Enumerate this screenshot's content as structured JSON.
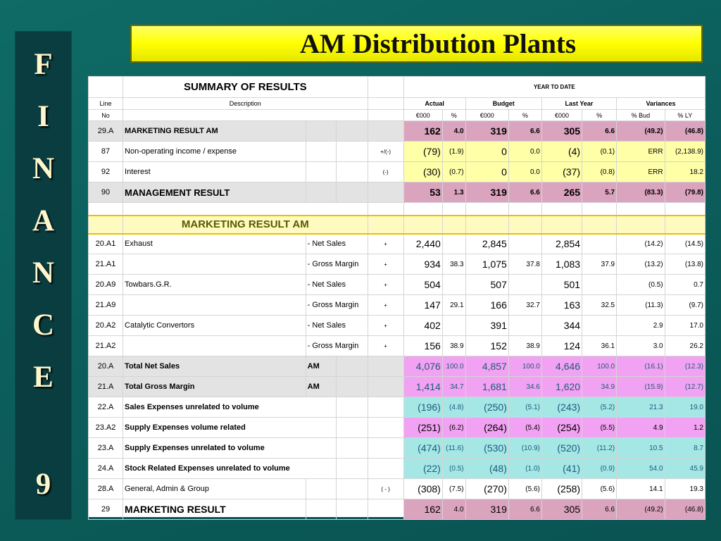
{
  "side_letters": [
    "F",
    "I",
    "N",
    "A",
    "N",
    "C",
    "E",
    "9"
  ],
  "title": "AM Distribution Plants",
  "table": {
    "summary_title": "SUMMARY   OF   RESULTS",
    "year_to_date": "YEAR TO DATE",
    "line_label": "Line",
    "no_label": "No",
    "description_label": "Description",
    "groups": [
      "Actual",
      "Budget",
      "Last Year",
      "Variances"
    ],
    "subheaders": [
      "€000",
      "%",
      "€000",
      "%",
      "€000",
      "%",
      "% Bud",
      "% LY"
    ],
    "summary_rows": [
      {
        "line": "29.A",
        "desc": "MARKETING RESULT AM",
        "sign": "",
        "a": "162",
        "ap": "4.0",
        "b": "319",
        "bp": "6.6",
        "ly": "305",
        "lyp": "6.6",
        "vb": "(49.2)",
        "vly": "(46.8)"
      },
      {
        "line": "87",
        "desc": "Non-operating income / expense",
        "sign": "+/(-)",
        "a": "(79)",
        "ap": "(1.9)",
        "b": "0",
        "bp": "0.0",
        "ly": "(4)",
        "lyp": "(0.1)",
        "vb": "ERR",
        "vly": "(2,138.9)"
      },
      {
        "line": "92",
        "desc": "Interest",
        "sign": "(-)",
        "a": "(30)",
        "ap": "(0.7)",
        "b": "0",
        "bp": "0.0",
        "ly": "(37)",
        "lyp": "(0.8)",
        "vb": "ERR",
        "vly": "18.2"
      },
      {
        "line": "90",
        "desc": "MANAGEMENT RESULT",
        "sign": "",
        "a": "53",
        "ap": "1.3",
        "b": "319",
        "bp": "6.6",
        "ly": "265",
        "lyp": "5.7",
        "vb": "(83.3)",
        "vly": "(79.8)"
      }
    ],
    "marketing_banner": "MARKETING   RESULT   AM",
    "detail_rows": [
      {
        "line": "20.A1",
        "desc": "Exhaust",
        "sub": "- Net Sales",
        "sign": "+",
        "a": "2,440",
        "ap": "",
        "b": "2,845",
        "bp": "",
        "ly": "2,854",
        "lyp": "",
        "vb": "(14.2)",
        "vly": "(14.5)"
      },
      {
        "line": "21.A1",
        "desc": "",
        "sub": "- Gross Margin",
        "sign": "+",
        "a": "934",
        "ap": "38.3",
        "b": "1,075",
        "bp": "37.8",
        "ly": "1,083",
        "lyp": "37.9",
        "vb": "(13.2)",
        "vly": "(13.8)"
      },
      {
        "line": "20.A9",
        "desc": "Towbars.G.R.",
        "sub": "- Net Sales",
        "sign": "+",
        "a": "504",
        "ap": "",
        "b": "507",
        "bp": "",
        "ly": "501",
        "lyp": "",
        "vb": "(0.5)",
        "vly": "0.7"
      },
      {
        "line": "21.A9",
        "desc": "",
        "sub": "- Gross Margin",
        "sign": "+",
        "a": "147",
        "ap": "29.1",
        "b": "166",
        "bp": "32.7",
        "ly": "163",
        "lyp": "32.5",
        "vb": "(11.3)",
        "vly": "(9.7)"
      },
      {
        "line": "20.A2",
        "desc": "Catalytic Convertors",
        "sub": "- Net Sales",
        "sign": "+",
        "a": "402",
        "ap": "",
        "b": "391",
        "bp": "",
        "ly": "344",
        "lyp": "",
        "vb": "2.9",
        "vly": "17.0"
      },
      {
        "line": "21.A2",
        "desc": "",
        "sub": "- Gross Margin",
        "sign": "+",
        "a": "156",
        "ap": "38.9",
        "b": "152",
        "bp": "38.9",
        "ly": "124",
        "lyp": "36.1",
        "vb": "3.0",
        "vly": "26.2"
      },
      {
        "line": "20.A",
        "desc": "Total Net Sales",
        "sub": "AM",
        "sign": "",
        "a": "4,076",
        "ap": "100.0",
        "b": "4,857",
        "bp": "100.0",
        "ly": "4,646",
        "lyp": "100.0",
        "vb": "(16.1)",
        "vly": "(12.3)"
      },
      {
        "line": "21.A",
        "desc": "Total Gross Margin",
        "sub": "AM",
        "sign": "",
        "a": "1,414",
        "ap": "34.7",
        "b": "1,681",
        "bp": "34.6",
        "ly": "1,620",
        "lyp": "34.9",
        "vb": "(15.9)",
        "vly": "(12.7)"
      },
      {
        "line": "22.A",
        "desc": "Sales Expenses unrelated to volume",
        "sub": "",
        "sign": "",
        "a": "(196)",
        "ap": "(4.8)",
        "b": "(250)",
        "bp": "(5.1)",
        "ly": "(243)",
        "lyp": "(5.2)",
        "vb": "21.3",
        "vly": "19.0"
      },
      {
        "line": "23.A2",
        "desc": "Supply Expenses volume related",
        "sub": "",
        "sign": "",
        "a": "(251)",
        "ap": "(6.2)",
        "b": "(264)",
        "bp": "(5.4)",
        "ly": "(254)",
        "lyp": "(5.5)",
        "vb": "4.9",
        "vly": "1.2"
      },
      {
        "line": "23.A",
        "desc": "Supply Expenses unrelated to volume",
        "sub": "",
        "sign": "",
        "a": "(474)",
        "ap": "(11.6)",
        "b": "(530)",
        "bp": "(10.9)",
        "ly": "(520)",
        "lyp": "(11.2)",
        "vb": "10.5",
        "vly": "8.7"
      },
      {
        "line": "24.A",
        "desc": "Stock Related Expenses unrelated to volume",
        "sub": "",
        "sign": "",
        "a": "(22)",
        "ap": "(0.5)",
        "b": "(48)",
        "bp": "(1.0)",
        "ly": "(41)",
        "lyp": "(0.9)",
        "vb": "54.0",
        "vly": "45.9"
      },
      {
        "line": "28.A",
        "desc": "General, Admin & Group",
        "sub": "",
        "sign": "( - )",
        "a": "(308)",
        "ap": "(7.5)",
        "b": "(270)",
        "bp": "(5.6)",
        "ly": "(258)",
        "lyp": "(5.6)",
        "vb": "14.1",
        "vly": "19.3"
      },
      {
        "line": "29",
        "desc": "MARKETING  RESULT",
        "sub": "",
        "sign": "",
        "a": "162",
        "ap": "4.0",
        "b": "319",
        "bp": "6.6",
        "ly": "305",
        "lyp": "6.6",
        "vb": "(49.2)",
        "vly": "(46.8)"
      }
    ]
  },
  "colors": {
    "background": "#0b5e5c",
    "side_panel": "#0a3d40",
    "title_bar": "#ffff00",
    "pink": "#dba4be",
    "magenta": "#f2a2f2",
    "yellow": "#ffffa8",
    "cyan": "#a5e7e5"
  }
}
